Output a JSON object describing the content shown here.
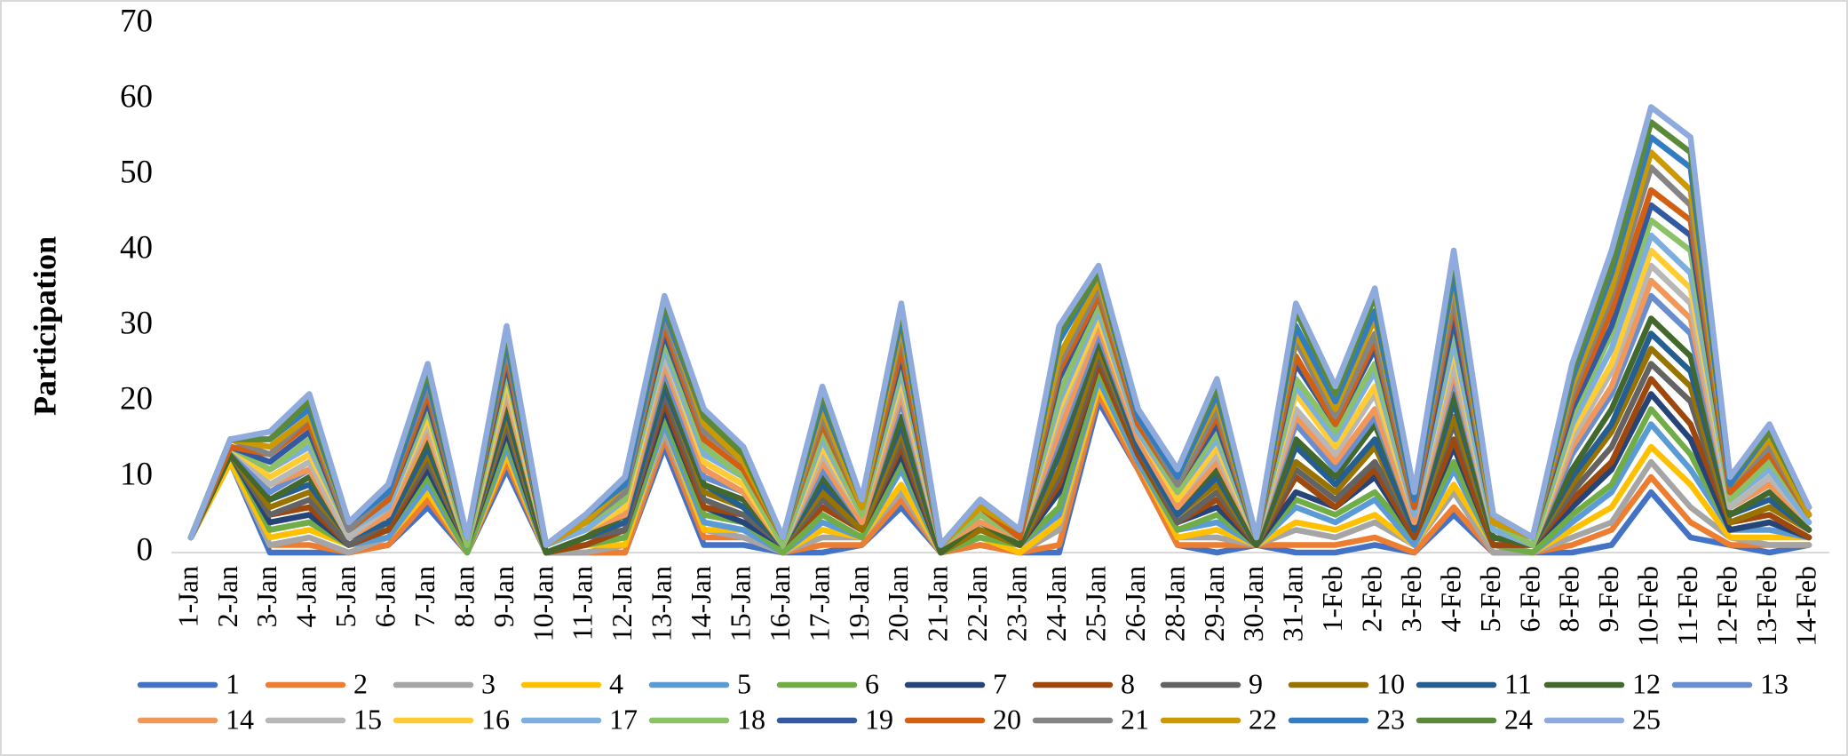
{
  "chart_data": {
    "type": "line",
    "y_label": "Participation",
    "categories": [
      "1-Jan",
      "2-Jan",
      "3-Jan",
      "4-Jan",
      "5-Jan",
      "6-Jan",
      "7-Jan",
      "8-Jan",
      "9-Jan",
      "10-Jan",
      "11-Jan",
      "12-Jan",
      "13-Jan",
      "14-Jan",
      "15-Jan",
      "16-Jan",
      "17-Jan",
      "19-Jan",
      "20-Jan",
      "21-Jan",
      "22-Jan",
      "23-Jan",
      "24-Jan",
      "25-Jan",
      "26-Jan",
      "28-Jan",
      "29-Jan",
      "30-Jan",
      "31-Jan",
      "1-Feb",
      "2-Feb",
      "3-Feb",
      "4-Feb",
      "5-Feb",
      "6-Feb",
      "8-Feb",
      "9-Feb",
      "10-Feb",
      "11-Feb",
      "12-Feb",
      "13-Feb",
      "14-Feb"
    ],
    "ylim": [
      0,
      70
    ],
    "yticks": [
      0,
      10,
      20,
      30,
      40,
      50,
      60,
      70
    ],
    "grid": false,
    "series": [
      {
        "name": "1",
        "color": "#4472C4",
        "values": [
          2,
          12,
          0,
          0,
          0,
          1,
          6,
          0,
          11,
          0,
          0,
          0,
          14,
          1,
          1,
          0,
          0,
          1,
          6,
          0,
          1,
          0,
          0,
          20,
          11,
          1,
          0,
          1,
          0,
          0,
          1,
          0,
          5,
          0,
          0,
          0,
          1,
          8,
          2,
          1,
          0,
          1
        ]
      },
      {
        "name": "2",
        "color": "#ED7D31",
        "values": [
          2,
          12,
          1,
          1,
          0,
          1,
          7,
          0,
          12,
          0,
          0,
          0,
          15,
          2,
          2,
          0,
          1,
          1,
          7,
          0,
          1,
          0,
          1,
          21,
          11,
          1,
          1,
          1,
          1,
          1,
          2,
          0,
          6,
          0,
          0,
          1,
          3,
          10,
          4,
          1,
          1,
          1
        ]
      },
      {
        "name": "3",
        "color": "#A5A5A5",
        "values": [
          2,
          12,
          1,
          2,
          0,
          2,
          8,
          0,
          13,
          0,
          0,
          1,
          16,
          3,
          2,
          0,
          2,
          2,
          8,
          0,
          2,
          0,
          3,
          22,
          12,
          2,
          2,
          1,
          3,
          2,
          4,
          1,
          8,
          0,
          0,
          2,
          4,
          12,
          6,
          2,
          1,
          1
        ]
      },
      {
        "name": "4",
        "color": "#FFC000",
        "values": [
          2,
          12,
          2,
          3,
          1,
          2,
          8,
          0,
          13,
          0,
          1,
          1,
          17,
          3,
          3,
          0,
          3,
          2,
          9,
          0,
          2,
          0,
          4,
          22,
          12,
          2,
          3,
          1,
          4,
          3,
          5,
          1,
          9,
          1,
          0,
          3,
          6,
          14,
          9,
          2,
          2,
          2
        ]
      },
      {
        "name": "5",
        "color": "#5B9BD5",
        "values": [
          2,
          13,
          3,
          4,
          1,
          2,
          9,
          0,
          14,
          0,
          1,
          2,
          17,
          4,
          3,
          0,
          4,
          2,
          11,
          0,
          2,
          1,
          5,
          23,
          12,
          3,
          4,
          1,
          6,
          4,
          7,
          1,
          11,
          1,
          0,
          4,
          8,
          17,
          11,
          3,
          3,
          2
        ]
      },
      {
        "name": "6",
        "color": "#70AD47",
        "values": [
          2,
          13,
          3,
          4,
          1,
          3,
          10,
          0,
          15,
          0,
          1,
          2,
          18,
          5,
          4,
          0,
          5,
          2,
          12,
          0,
          2,
          1,
          6,
          24,
          13,
          3,
          5,
          1,
          7,
          5,
          8,
          2,
          12,
          1,
          0,
          5,
          9,
          19,
          13,
          3,
          4,
          2
        ]
      },
      {
        "name": "7",
        "color": "#264478",
        "values": [
          2,
          13,
          4,
          5,
          1,
          3,
          11,
          1,
          16,
          0,
          1,
          3,
          19,
          6,
          4,
          1,
          6,
          3,
          13,
          0,
          3,
          1,
          8,
          25,
          13,
          4,
          6,
          1,
          8,
          6,
          10,
          2,
          14,
          1,
          1,
          6,
          11,
          21,
          15,
          3,
          4,
          2
        ]
      },
      {
        "name": "8",
        "color": "#9E480E",
        "values": [
          2,
          13,
          5,
          6,
          1,
          3,
          12,
          1,
          17,
          0,
          1,
          3,
          20,
          6,
          5,
          1,
          6,
          3,
          14,
          0,
          3,
          1,
          9,
          25,
          13,
          4,
          7,
          1,
          10,
          6,
          11,
          2,
          15,
          1,
          1,
          7,
          12,
          23,
          17,
          4,
          5,
          2
        ]
      },
      {
        "name": "9",
        "color": "#636363",
        "values": [
          2,
          13,
          5,
          7,
          1,
          4,
          12,
          1,
          17,
          0,
          2,
          3,
          21,
          7,
          5,
          1,
          7,
          3,
          15,
          0,
          3,
          1,
          10,
          26,
          14,
          4,
          8,
          1,
          11,
          7,
          12,
          3,
          17,
          2,
          1,
          8,
          14,
          25,
          20,
          4,
          6,
          3
        ]
      },
      {
        "name": "10",
        "color": "#997300",
        "values": [
          2,
          13,
          6,
          8,
          2,
          4,
          13,
          1,
          18,
          0,
          2,
          4,
          22,
          8,
          6,
          1,
          8,
          3,
          16,
          0,
          3,
          1,
          11,
          27,
          14,
          5,
          9,
          1,
          12,
          8,
          14,
          3,
          18,
          2,
          1,
          9,
          16,
          27,
          22,
          4,
          6,
          3
        ]
      },
      {
        "name": "11",
        "color": "#255E91",
        "values": [
          2,
          13,
          7,
          9,
          2,
          4,
          14,
          1,
          19,
          0,
          2,
          4,
          22,
          9,
          6,
          1,
          9,
          4,
          17,
          0,
          4,
          1,
          13,
          28,
          14,
          5,
          10,
          1,
          14,
          9,
          15,
          3,
          20,
          2,
          1,
          10,
          17,
          29,
          24,
          5,
          7,
          3
        ]
      },
      {
        "name": "12",
        "color": "#43682B",
        "values": [
          2,
          13,
          7,
          10,
          2,
          5,
          15,
          1,
          20,
          0,
          2,
          5,
          23,
          9,
          7,
          1,
          10,
          4,
          18,
          0,
          4,
          1,
          14,
          28,
          15,
          6,
          11,
          1,
          15,
          10,
          17,
          4,
          21,
          2,
          1,
          11,
          19,
          31,
          26,
          5,
          8,
          3
        ]
      },
      {
        "name": "13",
        "color": "#698ED0",
        "values": [
          2,
          14,
          8,
          11,
          2,
          5,
          16,
          1,
          21,
          1,
          3,
          5,
          24,
          10,
          8,
          1,
          11,
          4,
          20,
          1,
          4,
          2,
          15,
          29,
          15,
          6,
          12,
          2,
          17,
          11,
          18,
          4,
          23,
          3,
          1,
          13,
          21,
          34,
          29,
          6,
          9,
          4
        ]
      },
      {
        "name": "14",
        "color": "#F1975A",
        "values": [
          2,
          14,
          9,
          11,
          2,
          5,
          16,
          1,
          21,
          1,
          3,
          5,
          25,
          11,
          8,
          1,
          12,
          4,
          21,
          1,
          4,
          2,
          16,
          30,
          15,
          6,
          12,
          2,
          18,
          12,
          19,
          4,
          24,
          3,
          1,
          14,
          22,
          36,
          31,
          6,
          9,
          4
        ]
      },
      {
        "name": "15",
        "color": "#B7B7B7",
        "values": [
          2,
          14,
          9,
          12,
          2,
          6,
          17,
          1,
          22,
          1,
          3,
          6,
          26,
          12,
          9,
          1,
          13,
          5,
          22,
          1,
          5,
          2,
          18,
          31,
          16,
          7,
          13,
          2,
          19,
          13,
          21,
          5,
          25,
          3,
          1,
          15,
          24,
          38,
          33,
          6,
          10,
          4
        ]
      },
      {
        "name": "16",
        "color": "#FFCD33",
        "values": [
          2,
          14,
          10,
          13,
          3,
          6,
          18,
          1,
          23,
          1,
          3,
          6,
          27,
          12,
          9,
          1,
          14,
          5,
          23,
          1,
          5,
          2,
          19,
          31,
          16,
          7,
          14,
          2,
          21,
          14,
          22,
          5,
          27,
          3,
          1,
          16,
          25,
          40,
          35,
          7,
          11,
          4
        ]
      },
      {
        "name": "17",
        "color": "#7CAFDD",
        "values": [
          2,
          14,
          11,
          14,
          3,
          6,
          19,
          1,
          24,
          1,
          3,
          7,
          27,
          13,
          10,
          1,
          15,
          5,
          24,
          1,
          5,
          2,
          20,
          32,
          16,
          8,
          15,
          2,
          22,
          15,
          24,
          5,
          28,
          3,
          1,
          17,
          27,
          42,
          37,
          7,
          11,
          4
        ]
      },
      {
        "name": "18",
        "color": "#8CC168",
        "values": [
          2,
          14,
          11,
          15,
          3,
          7,
          19,
          1,
          24,
          1,
          4,
          7,
          28,
          14,
          10,
          1,
          16,
          5,
          25,
          1,
          5,
          2,
          21,
          33,
          17,
          8,
          16,
          2,
          23,
          16,
          25,
          6,
          30,
          4,
          1,
          18,
          29,
          44,
          40,
          7,
          12,
          5
        ]
      },
      {
        "name": "19",
        "color": "#335AA1",
        "values": [
          2,
          14,
          12,
          16,
          3,
          7,
          20,
          2,
          25,
          1,
          4,
          8,
          29,
          15,
          11,
          2,
          17,
          6,
          26,
          1,
          6,
          2,
          23,
          34,
          17,
          9,
          17,
          2,
          25,
          17,
          27,
          6,
          31,
          4,
          2,
          19,
          30,
          46,
          42,
          8,
          13,
          5
        ]
      },
      {
        "name": "20",
        "color": "#D26012",
        "values": [
          2,
          14,
          13,
          17,
          3,
          7,
          21,
          2,
          26,
          1,
          4,
          8,
          30,
          15,
          11,
          2,
          17,
          6,
          27,
          1,
          6,
          2,
          24,
          34,
          17,
          9,
          18,
          2,
          26,
          17,
          28,
          6,
          33,
          4,
          2,
          20,
          32,
          48,
          44,
          8,
          13,
          5
        ]
      },
      {
        "name": "21",
        "color": "#848484",
        "values": [
          2,
          15,
          13,
          18,
          3,
          8,
          22,
          2,
          27,
          1,
          4,
          8,
          31,
          16,
          12,
          2,
          18,
          6,
          29,
          1,
          6,
          3,
          25,
          35,
          18,
          9,
          19,
          2,
          28,
          18,
          29,
          7,
          34,
          4,
          2,
          21,
          34,
          51,
          46,
          9,
          14,
          5
        ]
      },
      {
        "name": "22",
        "color": "#CC9A00",
        "values": [
          2,
          15,
          14,
          18,
          4,
          8,
          23,
          2,
          28,
          1,
          4,
          9,
          32,
          17,
          12,
          2,
          19,
          6,
          30,
          1,
          6,
          3,
          26,
          36,
          18,
          10,
          20,
          2,
          29,
          19,
          31,
          7,
          36,
          4,
          2,
          22,
          35,
          53,
          48,
          9,
          15,
          5
        ]
      },
      {
        "name": "23",
        "color": "#327DC2",
        "values": [
          2,
          15,
          15,
          19,
          4,
          8,
          23,
          2,
          28,
          1,
          5,
          9,
          32,
          18,
          13,
          2,
          20,
          7,
          31,
          1,
          7,
          3,
          28,
          37,
          18,
          10,
          21,
          2,
          30,
          20,
          32,
          7,
          37,
          5,
          2,
          23,
          37,
          55,
          51,
          9,
          16,
          6
        ]
      },
      {
        "name": "24",
        "color": "#5A8A39",
        "values": [
          2,
          15,
          15,
          20,
          4,
          9,
          24,
          2,
          29,
          1,
          5,
          10,
          33,
          18,
          13,
          2,
          21,
          7,
          32,
          1,
          7,
          3,
          29,
          37,
          19,
          11,
          22,
          2,
          32,
          21,
          34,
          8,
          39,
          5,
          2,
          24,
          38,
          57,
          53,
          10,
          16,
          6
        ]
      },
      {
        "name": "25",
        "color": "#8FAADC",
        "values": [
          2,
          15,
          16,
          21,
          4,
          9,
          25,
          2,
          30,
          1,
          5,
          10,
          34,
          19,
          14,
          2,
          22,
          7,
          33,
          1,
          7,
          3,
          30,
          38,
          19,
          11,
          23,
          2,
          33,
          22,
          35,
          8,
          40,
          5,
          2,
          25,
          40,
          59,
          55,
          10,
          17,
          6
        ]
      }
    ]
  }
}
